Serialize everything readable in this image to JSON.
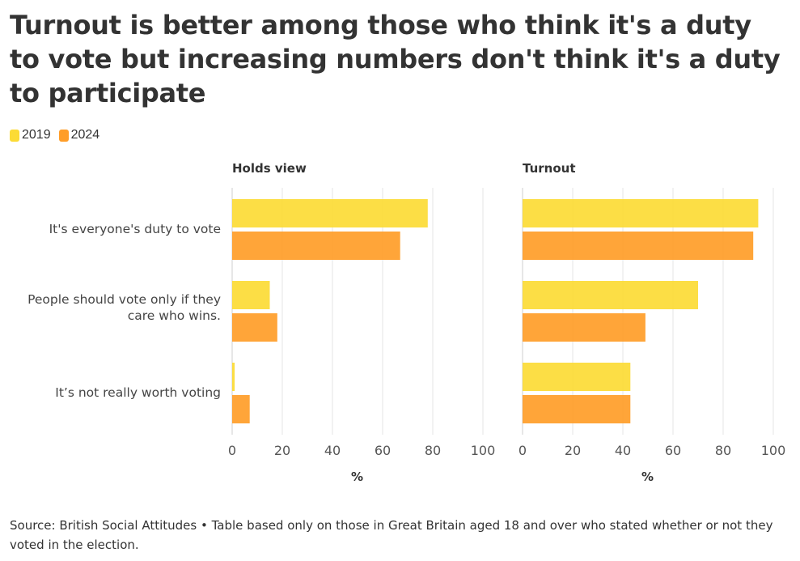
{
  "title": "Turnout is better among those who think it's a duty to vote but increasing numbers don't think it's a duty to participate",
  "legend": [
    {
      "label": "2019",
      "color": "#FCDB35"
    },
    {
      "label": "2024",
      "color": "#FF9D28"
    }
  ],
  "source": "Source: British Social Attitudes • Table based only on those in Great Britain aged 18 and over who stated whether or not they voted in the election.",
  "chart_data": [
    {
      "type": "bar",
      "title": "Holds view",
      "xlabel": "%",
      "xlim": [
        0,
        100
      ],
      "ticks": [
        0,
        20,
        40,
        60,
        80,
        100
      ],
      "categories": [
        "It's everyone's duty to vote",
        "People should vote only if they care who wins.",
        "It’s not really worth voting"
      ],
      "series": [
        {
          "name": "2019",
          "color": "#FCDB35",
          "values": [
            78,
            15,
            1
          ]
        },
        {
          "name": "2024",
          "color": "#FF9D28",
          "values": [
            67,
            18,
            7
          ]
        }
      ]
    },
    {
      "type": "bar",
      "title": "Turnout",
      "xlabel": "%",
      "xlim": [
        0,
        100
      ],
      "ticks": [
        0,
        20,
        40,
        60,
        80,
        100
      ],
      "categories": [
        "It's everyone's duty to vote",
        "People should vote only if they care who wins.",
        "It’s not really worth voting"
      ],
      "series": [
        {
          "name": "2019",
          "color": "#FCDB35",
          "values": [
            94,
            70,
            43
          ]
        },
        {
          "name": "2024",
          "color": "#FF9D28",
          "values": [
            92,
            49,
            43
          ]
        }
      ]
    }
  ]
}
